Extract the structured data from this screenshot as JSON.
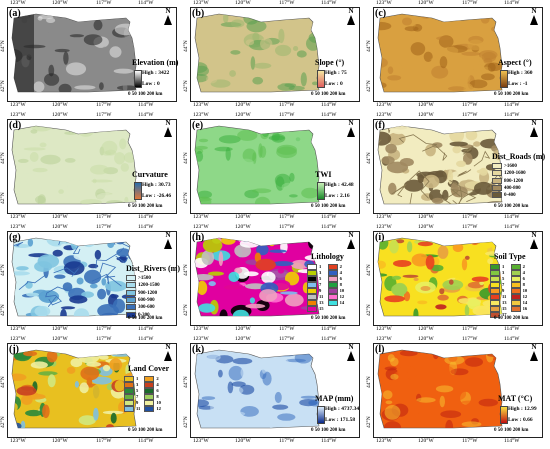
{
  "lon_ticks": [
    "123°W",
    "120°W",
    "117°W",
    "114°W"
  ],
  "lat_ticks": [
    "44°N",
    "42°N"
  ],
  "north_label": "N",
  "scale": {
    "values": "0  50 100   200",
    "unit": "km"
  },
  "panels": [
    {
      "id": "a",
      "label": "(a)",
      "title": "Elevation (m)",
      "high": "High : 3422",
      "low": "Low : 0",
      "ramp": [
        "#000000",
        "#ffffff"
      ],
      "colors": {
        "base": "#8a8a8a",
        "accent": "#e8e8e8",
        "dark": "#202020"
      }
    },
    {
      "id": "b",
      "label": "(b)",
      "title": "Slope (°)",
      "high": "High : 75",
      "low": "Low : 0",
      "ramp": [
        "#e06060",
        "#f4e6a0"
      ],
      "colors": {
        "base": "#d2c48a",
        "accent": "#5aa050",
        "dark": "#9ab870"
      }
    },
    {
      "id": "c",
      "label": "(c)",
      "title": "Aspect (°)",
      "high": "High : 360",
      "low": "Low : -1",
      "ramp": [
        "#7a3e10",
        "#f0c050"
      ],
      "colors": {
        "base": "#d9a040",
        "accent": "#a06218",
        "dark": "#c08030"
      }
    },
    {
      "id": "d",
      "label": "(d)",
      "title": "Curvature",
      "high": "High : 30.73",
      "low": "Low : -26.46",
      "ramp": [
        "#e0783c",
        "#2a6eaa"
      ],
      "colors": {
        "base": "#dde8c4",
        "accent": "#c8dca8",
        "dark": "#b8d098"
      }
    },
    {
      "id": "e",
      "label": "(e)",
      "title": "TWI",
      "high": "High : 42.48",
      "low": "Low : 2.16",
      "ramp": [
        "#1a8a2a",
        "#c8f0b8"
      ],
      "colors": {
        "base": "#8ed888",
        "accent": "#3cb040",
        "dark": "#5cc050"
      }
    },
    {
      "id": "f",
      "label": "(f)",
      "title": "Dist_Roads (m)",
      "classes": [
        ">1600",
        "1200-1600",
        "800-1200",
        "400-800",
        "0-400"
      ],
      "class_colors": [
        "#f2ecc0",
        "#e4d8a0",
        "#c8b480",
        "#a08a60",
        "#6a5a3a"
      ],
      "colors": {
        "base": "#f2ecc0",
        "accent": "#8a7a52",
        "dark": "#6a5a3a"
      }
    },
    {
      "id": "g",
      "label": "(g)",
      "title": "Dist_Rivers (m)",
      "classes": [
        ">1500",
        "1200-1500",
        "900-1200",
        "600-900",
        "300-600",
        "0-300"
      ],
      "class_colors": [
        "#d4f0f4",
        "#a8dcec",
        "#80c4e0",
        "#5aa0d0",
        "#3a70b8",
        "#1a3a90"
      ],
      "colors": {
        "base": "#d4f0f4",
        "accent": "#3a70b8",
        "dark": "#1a3a90"
      }
    },
    {
      "id": "h",
      "label": "(h)",
      "title": "Lithology",
      "classes": [
        "1",
        "2",
        "3",
        "4",
        "5",
        "6",
        "7",
        "8",
        "9",
        "10",
        "11",
        "12",
        "13",
        "14",
        "15"
      ],
      "class_colors": [
        "#ffffff",
        "#e04020",
        "#b8d000",
        "#3060c0",
        "#000000",
        "#f0a0c0",
        "#80c0f0",
        "#20a040",
        "#f0d000",
        "#a040a0",
        "#c0c0c0",
        "#ff70d0",
        "#f08000",
        "#40e0e0",
        "#e000a0"
      ],
      "colors": {
        "base": "#e000a0",
        "accent": "#b8d000",
        "dark": "#3060c0"
      }
    },
    {
      "id": "i",
      "label": "(i)",
      "title": "Soil Type",
      "classes": [
        "1",
        "2",
        "3",
        "4",
        "5",
        "6",
        "7",
        "8",
        "9",
        "10",
        "11",
        "12",
        "13",
        "14",
        "15",
        "16",
        "17"
      ],
      "class_colors": [
        "#3a9a2a",
        "#58b030",
        "#80c840",
        "#a0d050",
        "#c8e050",
        "#e8f060",
        "#f8e020",
        "#f8c020",
        "#f89a20",
        "#f07020",
        "#e84020",
        "#c02020",
        "#f8e860",
        "#f0c840",
        "#e8a040",
        "#e07030",
        "#c05030"
      ],
      "colors": {
        "base": "#f8e020",
        "accent": "#3a9a2a",
        "dark": "#e84020"
      }
    },
    {
      "id": "j",
      "label": "(j)",
      "title": "Land Cover",
      "classes": [
        "1",
        "2",
        "3",
        "4",
        "5",
        "6",
        "7",
        "8",
        "9",
        "10",
        "11",
        "12"
      ],
      "class_colors": [
        "#e8c020",
        "#f0a020",
        "#e07018",
        "#c84020",
        "#2a8a3a",
        "#1a6a2a",
        "#68b040",
        "#a0d060",
        "#d0e880",
        "#f0f0a0",
        "#80c0e0",
        "#2050a0"
      ],
      "colors": {
        "base": "#e8c020",
        "accent": "#1a6a2a",
        "dark": "#c84020"
      }
    },
    {
      "id": "k",
      "label": "(k)",
      "title": "MAP (mm)",
      "high": "High : 4737.34",
      "low": "Low : 171.58",
      "ramp": [
        "#0a2a8a",
        "#dcecfa"
      ],
      "colors": {
        "base": "#c8e0f4",
        "accent": "#3a70c0",
        "dark": "#0a3a9a"
      }
    },
    {
      "id": "l",
      "label": "(l)",
      "title": "MAT (°C)",
      "high": "High : 12.99",
      "low": "Low : 0.66",
      "ramp": [
        "#c01010",
        "#f8e040"
      ],
      "colors": {
        "base": "#f06010",
        "accent": "#f8c030",
        "dark": "#c02010"
      }
    }
  ]
}
